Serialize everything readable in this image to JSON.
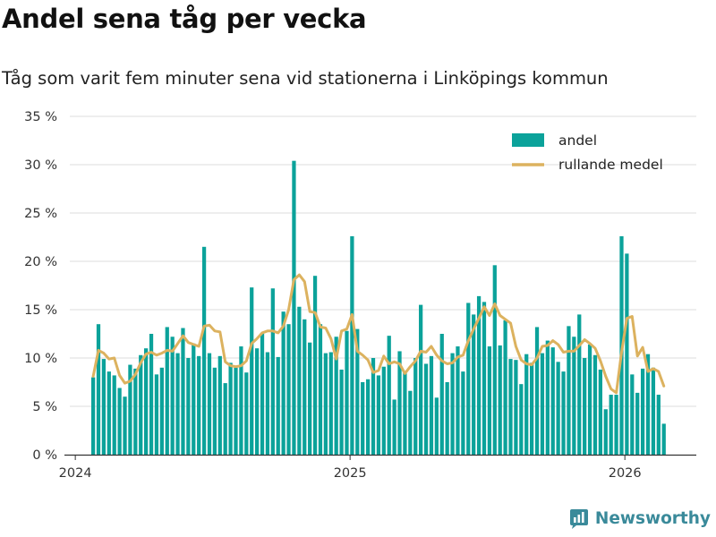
{
  "title": "Andel sena tåg per vecka",
  "subtitle": "Tåg som varit fem minuter sena vid stationerna i Linköpings kommun",
  "brand": "Newsworthy",
  "colors": {
    "bar": "#0ba29a",
    "line": "#dcb25f",
    "grid": "#dddddd",
    "axis": "#333333",
    "logo": "#3a8a9a"
  },
  "chart_data": {
    "type": "bar",
    "title": "Andel sena tåg per vecka",
    "subtitle": "Tåg som varit fem minuter sena vid stationerna i Linköpings kommun",
    "xlabel": "",
    "ylabel": "",
    "ylim": [
      0,
      35
    ],
    "xlim": [
      2023.98,
      2026.26
    ],
    "yticks": [
      {
        "value": 0,
        "label": "0 %"
      },
      {
        "value": 5,
        "label": "5 %"
      },
      {
        "value": 10,
        "label": "10 %"
      },
      {
        "value": 15,
        "label": "15 %"
      },
      {
        "value": 20,
        "label": "20 %"
      },
      {
        "value": 25,
        "label": "25 %"
      },
      {
        "value": 30,
        "label": "30 %"
      },
      {
        "value": 35,
        "label": "35 %"
      }
    ],
    "xticks": [
      {
        "value": 2024,
        "label": "2024"
      },
      {
        "value": 2025,
        "label": "2025"
      },
      {
        "value": 2026,
        "label": "2026"
      }
    ],
    "grid": true,
    "legend": {
      "position": "top-right",
      "entries": [
        "andel",
        "rullande medel"
      ]
    },
    "x_start": 2024.065,
    "x_step": 0.01923,
    "series": [
      {
        "name": "andel",
        "kind": "bar",
        "values": [
          8,
          13.5,
          9.9,
          8.6,
          8.2,
          6.9,
          6,
          9.3,
          8.9,
          10.3,
          11,
          12.5,
          8.3,
          9,
          13.2,
          12.2,
          10.5,
          13.1,
          10,
          11.5,
          10.2,
          21.5,
          10.5,
          9,
          10.2,
          7.4,
          9.5,
          9,
          11.2,
          8.5,
          17.3,
          11,
          12.6,
          10.6,
          17.2,
          10.1,
          14.8,
          13.5,
          30.4,
          15.3,
          14,
          11.6,
          18.5,
          13.5,
          10.5,
          10.6,
          12.2,
          8.8,
          12.8,
          22.6,
          13,
          7.5,
          7.8,
          10,
          8.2,
          9.1,
          12.3,
          5.7,
          10.7,
          8.6,
          6.6,
          10,
          15.5,
          9.4,
          10.2,
          5.9,
          12.5,
          7.5,
          10.5,
          11.2,
          8.6,
          15.7,
          14.5,
          16.4,
          15.8,
          11.2,
          19.6,
          11.3,
          13.9,
          9.9,
          9.8,
          7.3,
          10.4,
          9.5,
          13.2,
          10.5,
          11.8,
          11.1,
          9.6,
          8.6,
          13.3,
          12.2,
          14.5,
          10,
          11.4,
          10.3,
          8.8,
          4.7,
          6.2,
          6.2,
          22.6,
          20.8,
          8.3,
          6.4,
          8.9,
          10.4,
          9,
          6.2,
          3.2
        ]
      },
      {
        "name": "rullande medel",
        "kind": "line",
        "values": [
          8.1,
          10.8,
          10.5,
          9.9,
          10,
          8.2,
          7.4,
          7.6,
          8.3,
          9.5,
          10.4,
          10.6,
          10.3,
          10.5,
          10.8,
          10.7,
          11.5,
          12.3,
          11.6,
          11.4,
          11.2,
          13.3,
          13.4,
          12.8,
          12.7,
          9.6,
          9.2,
          9.1,
          9.2,
          9.7,
          11.5,
          12,
          12.6,
          12.8,
          12.8,
          12.6,
          13.3,
          15,
          18.1,
          18.6,
          17.9,
          14.8,
          14.7,
          13.2,
          13.1,
          12,
          9.9,
          12.8,
          13,
          14.5,
          10.7,
          10.3,
          9.8,
          8.5,
          8.7,
          10.2,
          9.4,
          9.6,
          9.4,
          8.4,
          9.1,
          9.7,
          10.7,
          10.6,
          11.2,
          10.3,
          9.7,
          9.4,
          9.5,
          10.1,
          10.3,
          11.8,
          13,
          14.1,
          15.3,
          14.4,
          15.6,
          14.4,
          14,
          13.6,
          11.2,
          9.8,
          9.4,
          9.3,
          10,
          11.2,
          11.3,
          11.8,
          11.4,
          10.6,
          10.7,
          10.7,
          11.3,
          11.9,
          11.5,
          11,
          9.7,
          8.1,
          6.8,
          6.4,
          10.6,
          14.1,
          14.3,
          10.2,
          11.1,
          8.6,
          8.9,
          8.6,
          7.1
        ]
      }
    ]
  }
}
